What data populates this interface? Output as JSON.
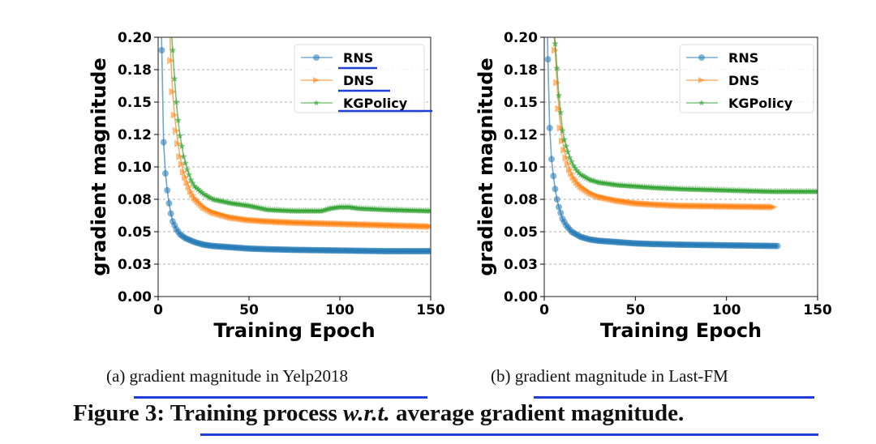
{
  "chart_data": [
    {
      "type": "line",
      "title": "",
      "subcaption": "(a) gradient magnitude in Yelp2018",
      "xlabel": "Training Epoch",
      "ylabel": "gradient magnitude",
      "xlim": [
        0,
        150
      ],
      "ylim": [
        0.0,
        0.2
      ],
      "xticks": [
        0,
        50,
        100,
        150
      ],
      "xtick_labels": [
        "0",
        "50",
        "100",
        "150"
      ],
      "yticks": [
        0.0,
        0.025,
        0.05,
        0.075,
        0.1,
        0.125,
        0.15,
        0.175,
        0.2
      ],
      "ytick_labels": [
        "0.00",
        "0.03",
        "0.05",
        "0.08",
        "0.10",
        "0.12",
        "0.15",
        "0.18",
        "0.20"
      ],
      "grid": "horizontal dashed",
      "legend": "top-right",
      "series": [
        {
          "name": "RNS",
          "color": "#1f77b4",
          "marker": "circle",
          "x": [
            1,
            2,
            3,
            4,
            5,
            6,
            7,
            8,
            10,
            12,
            15,
            20,
            25,
            30,
            40,
            50,
            60,
            75,
            100,
            125,
            150
          ],
          "y": [
            0.26,
            0.19,
            0.119,
            0.095,
            0.082,
            0.072,
            0.064,
            0.058,
            0.052,
            0.048,
            0.045,
            0.042,
            0.04,
            0.039,
            0.038,
            0.037,
            0.0365,
            0.036,
            0.0355,
            0.035,
            0.035
          ]
        },
        {
          "name": "DNS",
          "color": "#ff7f0e",
          "marker": "triangle-right",
          "x": [
            6,
            7,
            8,
            9,
            10,
            11,
            12,
            14,
            16,
            18,
            20,
            25,
            30,
            40,
            50,
            60,
            75,
            100,
            125,
            150
          ],
          "y": [
            0.22,
            0.182,
            0.158,
            0.14,
            0.128,
            0.118,
            0.108,
            0.096,
            0.088,
            0.081,
            0.076,
            0.069,
            0.065,
            0.061,
            0.059,
            0.058,
            0.057,
            0.056,
            0.055,
            0.054
          ]
        },
        {
          "name": "KGPolicy",
          "color": "#2ca02c",
          "marker": "star",
          "x": [
            7,
            8,
            9,
            10,
            11,
            12,
            14,
            16,
            18,
            20,
            25,
            30,
            40,
            50,
            60,
            75,
            90,
            95,
            100,
            105,
            110,
            125,
            150
          ],
          "y": [
            0.21,
            0.19,
            0.168,
            0.15,
            0.136,
            0.124,
            0.108,
            0.098,
            0.09,
            0.085,
            0.079,
            0.075,
            0.072,
            0.07,
            0.067,
            0.066,
            0.066,
            0.068,
            0.069,
            0.069,
            0.068,
            0.067,
            0.066
          ]
        }
      ]
    },
    {
      "type": "line",
      "title": "",
      "subcaption": "(b) gradient magnitude in Last-FM",
      "xlabel": "Training Epoch",
      "ylabel": "gradient magnitude",
      "xlim": [
        0,
        150
      ],
      "ylim": [
        0.0,
        0.2
      ],
      "xticks": [
        0,
        50,
        100,
        150
      ],
      "xtick_labels": [
        "0",
        "50",
        "100",
        "150"
      ],
      "yticks": [
        0.0,
        0.025,
        0.05,
        0.075,
        0.1,
        0.125,
        0.15,
        0.175,
        0.2
      ],
      "ytick_labels": [
        "0.00",
        "0.03",
        "0.05",
        "0.08",
        "0.10",
        "0.12",
        "0.15",
        "0.18",
        "0.20"
      ],
      "grid": "horizontal dashed",
      "legend": "top-right",
      "series": [
        {
          "name": "RNS",
          "color": "#1f77b4",
          "marker": "circle",
          "x": [
            1,
            2,
            3,
            4,
            5,
            6,
            7,
            8,
            10,
            12,
            15,
            20,
            25,
            30,
            40,
            50,
            60,
            75,
            100,
            128
          ],
          "y": [
            0.26,
            0.183,
            0.13,
            0.106,
            0.093,
            0.083,
            0.075,
            0.069,
            0.06,
            0.055,
            0.05,
            0.046,
            0.044,
            0.043,
            0.042,
            0.041,
            0.0405,
            0.04,
            0.0395,
            0.039
          ]
        },
        {
          "name": "DNS",
          "color": "#ff7f0e",
          "marker": "triangle-right",
          "x": [
            5,
            6,
            7,
            8,
            9,
            10,
            11,
            12,
            14,
            16,
            18,
            20,
            25,
            30,
            40,
            50,
            60,
            75,
            100,
            126
          ],
          "y": [
            0.21,
            0.19,
            0.165,
            0.145,
            0.13,
            0.12,
            0.113,
            0.107,
            0.098,
            0.092,
            0.088,
            0.085,
            0.08,
            0.077,
            0.074,
            0.072,
            0.071,
            0.07,
            0.0695,
            0.069
          ]
        },
        {
          "name": "KGPolicy",
          "color": "#2ca02c",
          "marker": "star",
          "x": [
            5,
            6,
            7,
            8,
            9,
            10,
            11,
            12,
            14,
            16,
            18,
            20,
            25,
            30,
            40,
            50,
            60,
            75,
            100,
            125,
            150
          ],
          "y": [
            0.21,
            0.195,
            0.176,
            0.155,
            0.142,
            0.128,
            0.121,
            0.116,
            0.107,
            0.101,
            0.097,
            0.094,
            0.09,
            0.088,
            0.086,
            0.085,
            0.084,
            0.083,
            0.082,
            0.081,
            0.081
          ]
        }
      ]
    }
  ],
  "figure_caption": {
    "prefix": "Figure 3: ",
    "part1": "Training process ",
    "italic": "w.r.t.",
    "part2": " average gradient magnitude."
  },
  "annotation_color": "#1f3fd6"
}
